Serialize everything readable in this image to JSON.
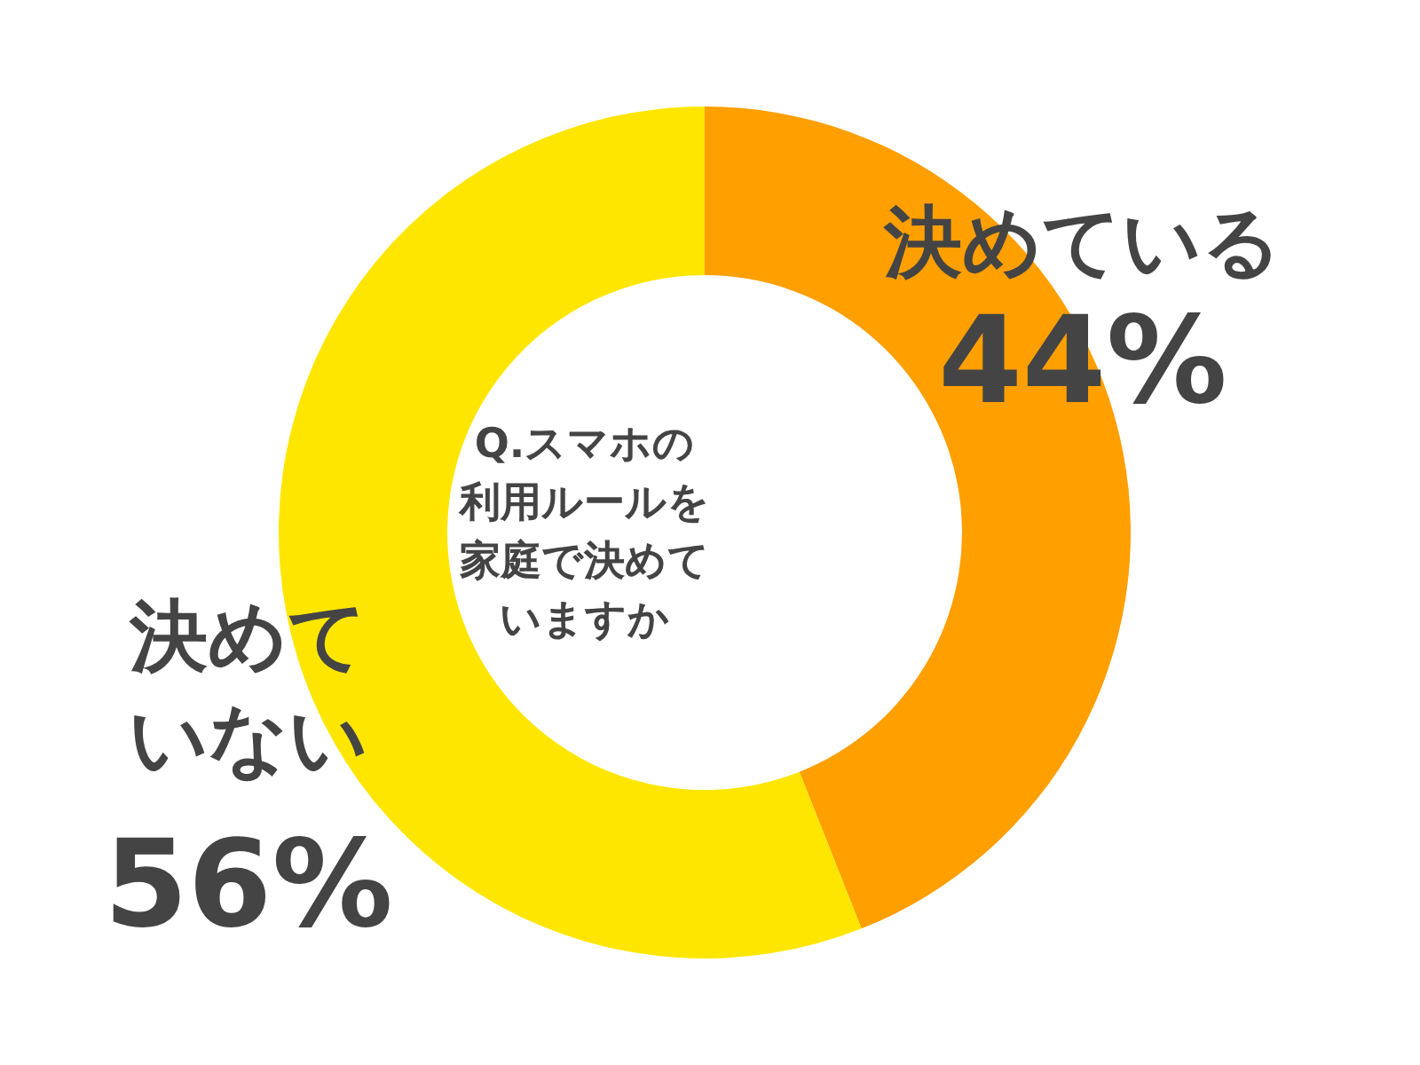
{
  "chart_data": {
    "type": "donut",
    "title": "Q.スマホの利用ルールを家庭で決めていますか",
    "categories": [
      "決めている",
      "決めていない"
    ],
    "values": [
      44,
      56
    ],
    "colors": [
      "#ff9f00",
      "#ffe600"
    ],
    "value_labels": [
      "44%",
      "56%"
    ],
    "legend": false
  }
}
